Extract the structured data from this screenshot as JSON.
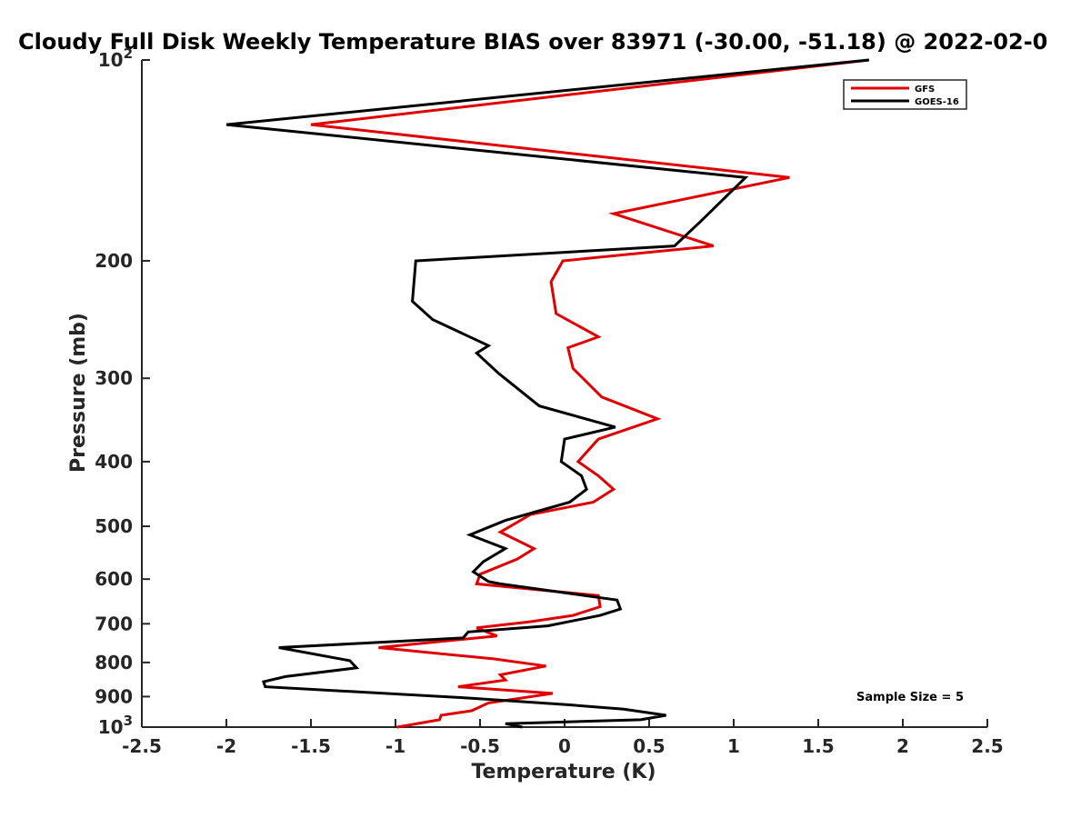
{
  "chart_data": {
    "type": "line",
    "title": "Cloudy Full Disk Weekly Temperature BIAS over 83971 (-30.00, -51.18) @ 2022-02-0",
    "xlabel": "Temperature (K)",
    "ylabel": "Pressure (mb)",
    "xlim": [
      -2.5,
      2.5
    ],
    "ylim": [
      100,
      1000
    ],
    "yscale": "log",
    "yreversed": true,
    "xticks": [
      "-2.5",
      "-2",
      "-1.5",
      "-1",
      "-0.5",
      "0",
      "0.5",
      "1",
      "1.5",
      "2",
      "2.5"
    ],
    "yticks": [
      {
        "value": 100,
        "base": "10",
        "exp": "2"
      },
      {
        "value": 200,
        "label": "200"
      },
      {
        "value": 300,
        "label": "300"
      },
      {
        "value": 400,
        "label": "400"
      },
      {
        "value": 500,
        "label": "500"
      },
      {
        "value": 600,
        "label": "600"
      },
      {
        "value": 700,
        "label": "700"
      },
      {
        "value": 800,
        "label": "800"
      },
      {
        "value": 900,
        "label": "900"
      },
      {
        "value": 1000,
        "base": "10",
        "exp": "3"
      }
    ],
    "grid": false,
    "legend_position": "top-right",
    "annotation": "Sample Size = 5",
    "series": [
      {
        "name": "GFS",
        "color": "#e00000",
        "points": [
          [
            1.8,
            100
          ],
          [
            -1.5,
            125
          ],
          [
            1.33,
            150
          ],
          [
            0.29,
            170
          ],
          [
            0.88,
            190
          ],
          [
            -0.01,
            200
          ],
          [
            -0.08,
            215
          ],
          [
            -0.05,
            240
          ],
          [
            0.2,
            260
          ],
          [
            0.02,
            270
          ],
          [
            0.05,
            290
          ],
          [
            0.22,
            320
          ],
          [
            0.55,
            345
          ],
          [
            0.2,
            370
          ],
          [
            0.08,
            400
          ],
          [
            0.2,
            420
          ],
          [
            0.29,
            440
          ],
          [
            0.17,
            460
          ],
          [
            -0.2,
            480
          ],
          [
            -0.38,
            510
          ],
          [
            -0.18,
            540
          ],
          [
            -0.28,
            560
          ],
          [
            -0.5,
            590
          ],
          [
            -0.52,
            610
          ],
          [
            0.2,
            635
          ],
          [
            0.21,
            660
          ],
          [
            0.05,
            680
          ],
          [
            -0.2,
            695
          ],
          [
            -0.52,
            710
          ],
          [
            -0.4,
            730
          ],
          [
            -1.1,
            760
          ],
          [
            -0.42,
            790
          ],
          [
            -0.11,
            810
          ],
          [
            -0.38,
            835
          ],
          [
            -0.35,
            850
          ],
          [
            -0.63,
            870
          ],
          [
            -0.07,
            890
          ],
          [
            -0.45,
            920
          ],
          [
            -0.55,
            945
          ],
          [
            -0.73,
            960
          ],
          [
            -0.74,
            975
          ],
          [
            -0.99,
            1000
          ]
        ]
      },
      {
        "name": "GOES-16",
        "color": "#000000",
        "points": [
          [
            1.8,
            100
          ],
          [
            -2.0,
            125
          ],
          [
            1.07,
            150
          ],
          [
            0.8,
            175
          ],
          [
            0.65,
            190
          ],
          [
            -0.88,
            200
          ],
          [
            -0.9,
            230
          ],
          [
            -0.78,
            245
          ],
          [
            -0.45,
            268
          ],
          [
            -0.52,
            275
          ],
          [
            -0.39,
            295
          ],
          [
            -0.15,
            330
          ],
          [
            0.3,
            355
          ],
          [
            0.0,
            370
          ],
          [
            -0.02,
            400
          ],
          [
            0.1,
            420
          ],
          [
            0.13,
            440
          ],
          [
            0.03,
            460
          ],
          [
            -0.35,
            490
          ],
          [
            -0.56,
            515
          ],
          [
            -0.35,
            540
          ],
          [
            -0.48,
            565
          ],
          [
            -0.54,
            585
          ],
          [
            -0.45,
            605
          ],
          [
            -0.38,
            610
          ],
          [
            0.31,
            645
          ],
          [
            0.33,
            665
          ],
          [
            0.21,
            680
          ],
          [
            -0.1,
            705
          ],
          [
            -0.57,
            720
          ],
          [
            -0.6,
            735
          ],
          [
            -1.69,
            760
          ],
          [
            -1.27,
            795
          ],
          [
            -1.23,
            815
          ],
          [
            -1.65,
            840
          ],
          [
            -1.78,
            855
          ],
          [
            -1.77,
            870
          ],
          [
            -0.55,
            905
          ],
          [
            0.0,
            925
          ],
          [
            0.35,
            940
          ],
          [
            0.6,
            960
          ],
          [
            0.45,
            975
          ],
          [
            -0.35,
            988
          ],
          [
            -0.25,
            1000
          ]
        ]
      }
    ]
  }
}
